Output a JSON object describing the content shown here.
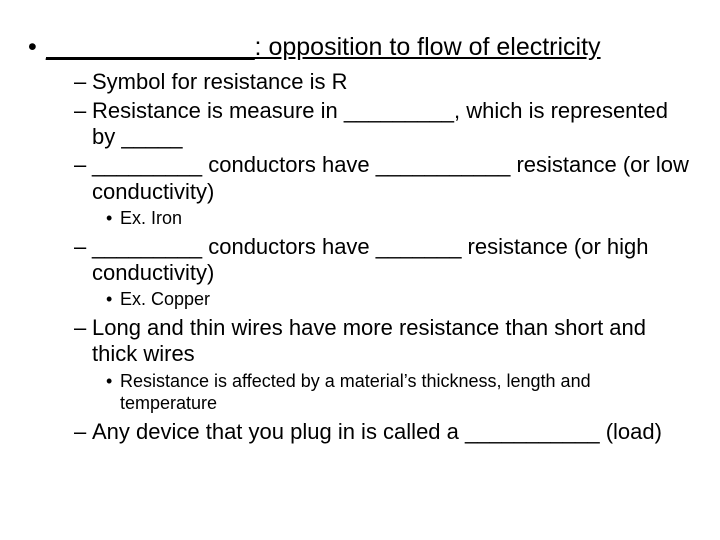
{
  "colors": {
    "text": "#000000",
    "background": "#ffffff"
  },
  "typography": {
    "font_family": "Arial",
    "level1_fontsize_pt": 19,
    "level2_fontsize_pt": 16,
    "level3_fontsize_pt": 13
  },
  "content": {
    "l1": "_______________: opposition to flow of electricity",
    "l2a": "Symbol for resistance is R",
    "l2b": "Resistance is measure in _________, which is represented by _____",
    "l2c": "_________ conductors have ___________ resistance (or low conductivity)",
    "l3c": "Ex. Iron",
    "l2d": "_________ conductors have _______ resistance (or high conductivity)",
    "l3d": "Ex. Copper",
    "l2e": "Long and thin wires have more resistance than short and thick wires",
    "l3e": "Resistance is affected by a material’s thickness, length and temperature",
    "l2f": "Any device that you plug in is called a ___________ (load)"
  }
}
